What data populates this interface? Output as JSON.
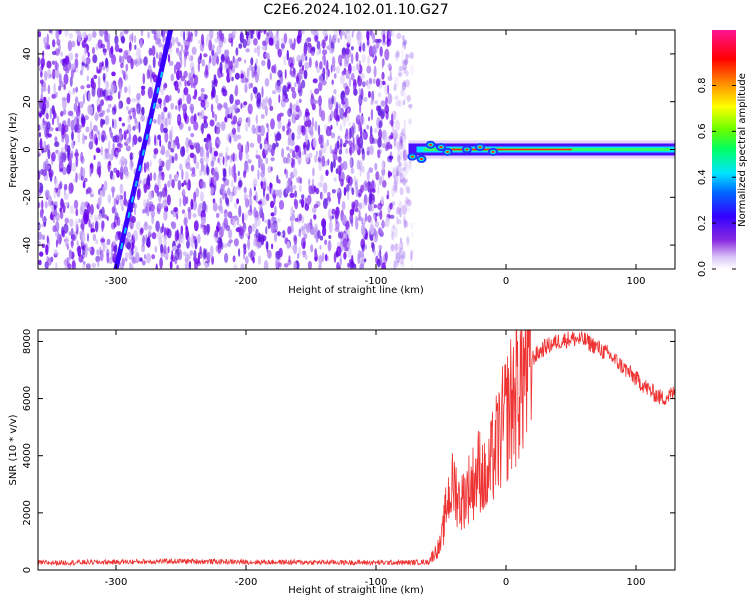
{
  "title": "C2E6.2024.102.01.10.G27",
  "chart_data": [
    {
      "type": "heatmap",
      "xlabel": "Height of straight line (km)",
      "ylabel": "Frequency (Hz)",
      "xlim": [
        -360,
        130
      ],
      "ylim": [
        -50,
        50
      ],
      "x_ticks": [
        -300,
        -200,
        -100,
        0,
        100
      ],
      "y_ticks": [
        -40,
        -20,
        0,
        20,
        40
      ],
      "colorbar": {
        "label": "Normalized spectral amplitude",
        "range": [
          0,
          1
        ],
        "ticks": [
          "0.0",
          "0.2",
          "0.4",
          "0.6",
          "0.8"
        ],
        "colors": [
          "#ffffff",
          "#c9b0f2",
          "#8a2be2",
          "#4b00ff",
          "#0055ff",
          "#00e5ff",
          "#00ff66",
          "#6aff00",
          "#ffff00",
          "#ff8000",
          "#ff0000",
          "#ff1493"
        ]
      },
      "features": {
        "noise_region_x": [
          -360,
          -72
        ],
        "carrier_line": {
          "x_start": -75,
          "x_end": 130,
          "frequency": 0
        },
        "diagonal_streak": {
          "x_start": -300,
          "f_start": -50,
          "x_end": -258,
          "f_end": 50
        }
      }
    },
    {
      "type": "line",
      "xlabel": "Height of straight line (km)",
      "ylabel": "SNR (10 * v/v)",
      "xlim": [
        -360,
        130
      ],
      "ylim": [
        0,
        8400
      ],
      "x_ticks": [
        -300,
        -200,
        -100,
        0,
        100
      ],
      "y_ticks": [
        0,
        2000,
        4000,
        6000,
        8000
      ],
      "line_color": "#ee3333",
      "series": [
        {
          "x": [
            -360,
            -300,
            -250,
            -200,
            -150,
            -100,
            -75,
            -60,
            -50,
            -45,
            -40,
            -35,
            -30,
            -25,
            -20,
            -15,
            -10,
            -5,
            0,
            10,
            20,
            30,
            40,
            50,
            60,
            70,
            80,
            90,
            100,
            110,
            120,
            130
          ],
          "values": [
            250,
            280,
            310,
            280,
            270,
            260,
            260,
            280,
            900,
            2500,
            3000,
            2300,
            2800,
            3100,
            3600,
            2900,
            4000,
            4600,
            5300,
            6600,
            7400,
            7800,
            8000,
            8100,
            8050,
            7800,
            7500,
            7100,
            6700,
            6300,
            6000,
            6200
          ]
        }
      ]
    }
  ]
}
